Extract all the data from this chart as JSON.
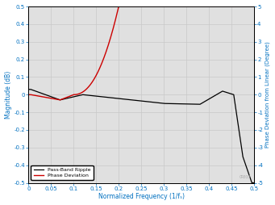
{
  "title": "",
  "xlabel": "Normalized Frequency (1/fₛ)",
  "ylabel_left": "Magnitude (dB)",
  "ylabel_right": "Phase Deviation from Linear (Degree)",
  "xlim": [
    0,
    0.5
  ],
  "ylim_left": [
    -0.5,
    0.5
  ],
  "ylim_right": [
    -5,
    5
  ],
  "yticks_left": [
    -0.5,
    -0.4,
    -0.3,
    -0.2,
    -0.1,
    0.0,
    0.1,
    0.2,
    0.3,
    0.4,
    0.5
  ],
  "yticks_right": [
    -5,
    -4,
    -3,
    -2,
    -1,
    0,
    1,
    2,
    3,
    4,
    5
  ],
  "xticks": [
    0,
    0.05,
    0.1,
    0.15,
    0.2,
    0.25,
    0.3,
    0.35,
    0.4,
    0.45,
    0.5
  ],
  "grid_color": "#c8c8c8",
  "line_ripple_color": "#000000",
  "line_phase_color": "#cc0000",
  "legend_labels": [
    "Pass-Band Ripple",
    "Phase Deviation"
  ],
  "background_color": "#ffffff",
  "plot_bg_color": "#e0e0e0",
  "axis_label_color": "#0070c0",
  "tick_label_color": "#0070c0",
  "watermark": "CR033",
  "watermark_color": "#aaaaaa",
  "figsize": [
    3.41,
    2.54
  ],
  "dpi": 100
}
